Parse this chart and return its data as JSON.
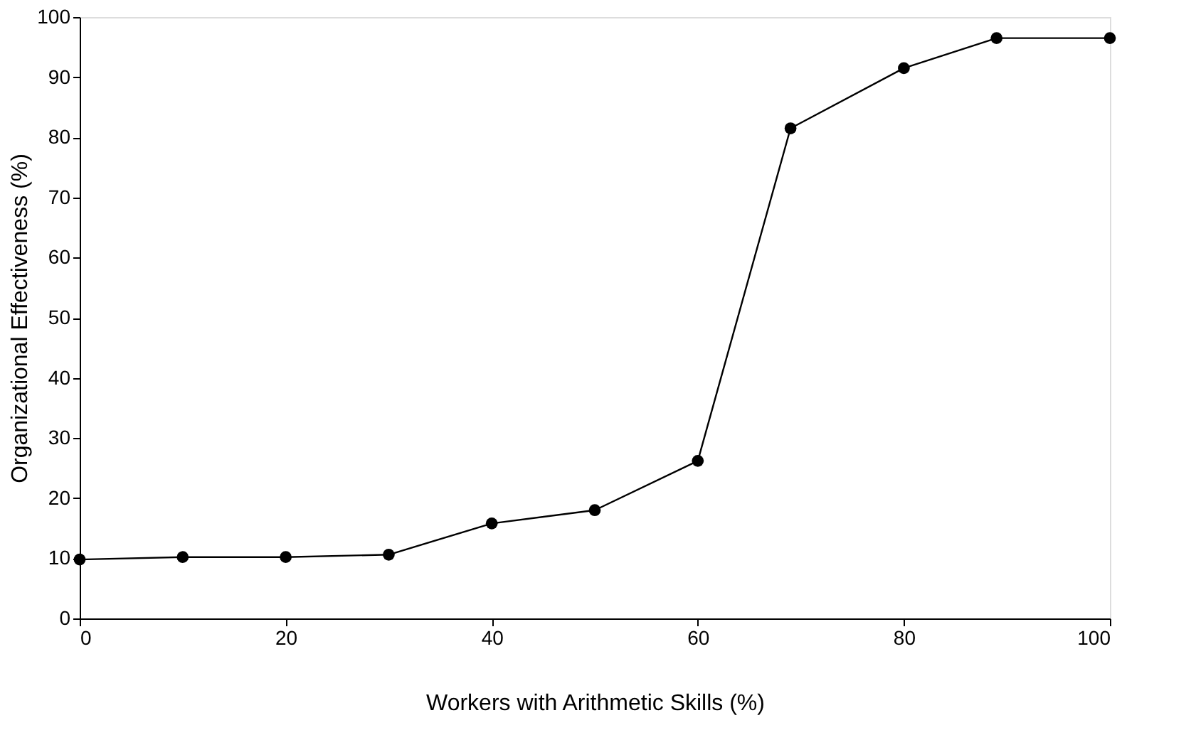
{
  "chart_data": {
    "type": "line",
    "xlabel": "Workers with Arithmetic Skills (%)",
    "ylabel": "Organizational Effectiveness (%)",
    "x": [
      0,
      10,
      20,
      30,
      40,
      50,
      60,
      69,
      80,
      89,
      100
    ],
    "series": [
      {
        "color": "#000000",
        "values": [
          9.8,
          10.2,
          10.2,
          10.6,
          15.8,
          18,
          26.2,
          81.5,
          91.5,
          96.5,
          96.5
        ]
      }
    ],
    "xlim": [
      0,
      100
    ],
    "xticks": [
      0,
      20,
      40,
      60,
      80,
      100
    ],
    "ylim": [
      0,
      100
    ],
    "yticks": [
      0,
      10,
      20,
      30,
      40,
      50,
      60,
      70,
      80,
      90,
      100
    ],
    "grid": false,
    "legend": false,
    "marker": "circle",
    "line_style": "solid"
  }
}
